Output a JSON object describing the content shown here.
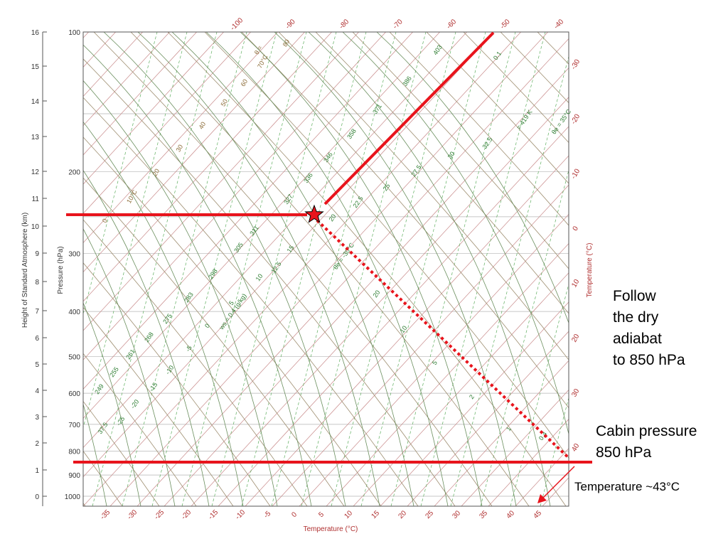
{
  "axes": {
    "left_km_label": "Height of Standard Atmosphere (km)",
    "pressure_label": "Pressure (hPa)",
    "bottom_label": "Temperature (°C)",
    "right_label": "Temperature (°C)",
    "km_ticks": [
      "16",
      "15",
      "14",
      "13",
      "12",
      "11",
      "10",
      "9",
      "8",
      "7",
      "6",
      "5",
      "4",
      "3",
      "2",
      "1",
      "0"
    ],
    "pressure_ticks": [
      "100",
      "200",
      "300",
      "400",
      "500",
      "600",
      "700",
      "800",
      "900",
      "1000"
    ],
    "bottom_ticks": [
      "-35",
      "-30",
      "-25",
      "-20",
      "-15",
      "-10",
      "-5",
      "0",
      "5",
      "10",
      "15",
      "20",
      "25",
      "30",
      "35",
      "40",
      "45"
    ],
    "top_ticks": [
      "-100",
      "-90",
      "-80",
      "-70",
      "-60",
      "-50",
      "-40"
    ],
    "right_ticks": [
      "-30",
      "-20",
      "-10",
      "0",
      "10",
      "20",
      "30",
      "40"
    ]
  },
  "line_labels": {
    "green": [
      "403",
      "386",
      "371",
      "358",
      "346",
      "336",
      "327",
      "311",
      "305",
      "298",
      "283",
      "275",
      "268",
      "261",
      "255",
      "249",
      "32.5",
      "30",
      "27.5",
      "25",
      "22.5",
      "20",
      "15",
      "12.5",
      "10",
      "5",
      "0",
      "-5",
      "-10",
      "-15",
      "-20",
      "-25",
      "20",
      "10",
      "5",
      "2",
      "1",
      "0.4",
      "0.1",
      "= 419 K",
      "θe = 35°C",
      "37.5",
      "θe = -30°C",
      "ws = 0.4 (g/kg)"
    ],
    "brown": [
      "80",
      "70°C",
      "60",
      "50",
      "40",
      "30",
      "20",
      "10°C",
      "0",
      "θ ="
    ]
  },
  "annotations": {
    "note1": [
      "Follow",
      "the dry",
      "adiabat",
      "to 850 hPa"
    ],
    "note2": [
      "Cabin pressure",
      "850 hPa"
    ],
    "note3": "Temperature ~43°C"
  },
  "colors": {
    "highlight": "#e8141c",
    "grid_gray": "#b5b5b5",
    "isotherm": "#c88a8a",
    "moist": "#6b8f5e",
    "mixing": "#5fae5f",
    "dry": "#9e8e70"
  }
}
